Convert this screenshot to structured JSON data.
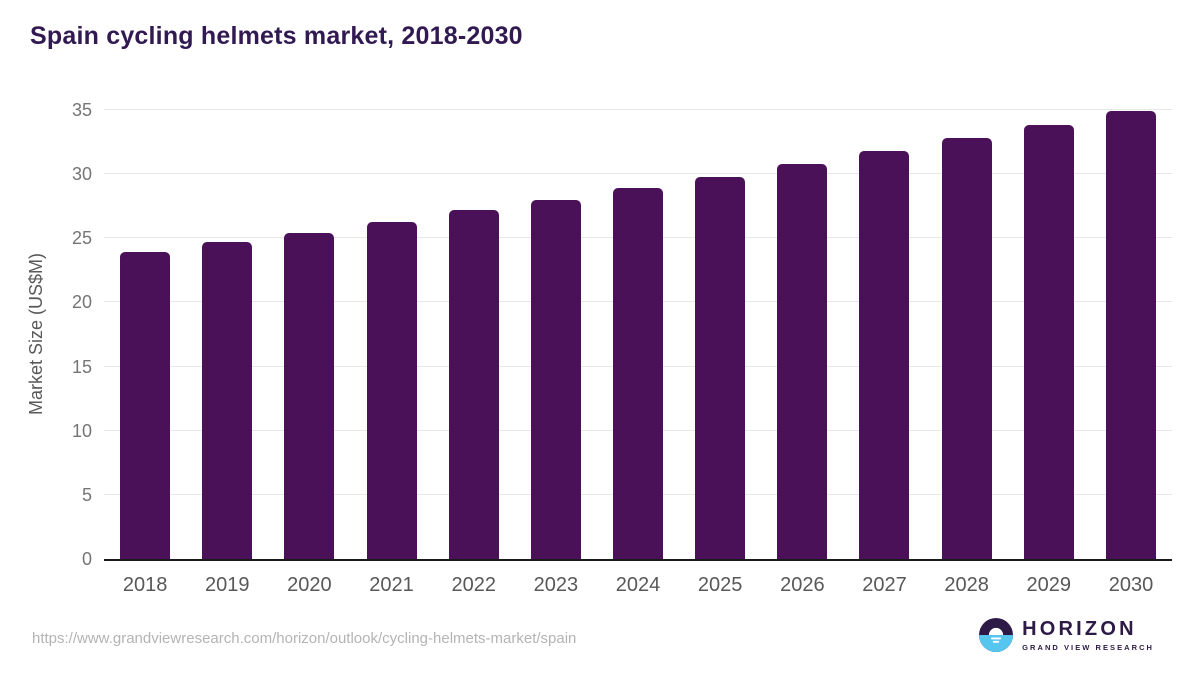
{
  "title": "Spain cycling helmets market, 2018-2030",
  "chart_data": {
    "type": "bar",
    "title": "Spain cycling helmets market, 2018-2030",
    "categories": [
      "2018",
      "2019",
      "2020",
      "2021",
      "2022",
      "2023",
      "2024",
      "2025",
      "2026",
      "2027",
      "2028",
      "2029",
      "2030"
    ],
    "values": [
      23.9,
      24.7,
      25.4,
      26.3,
      27.2,
      28.0,
      28.9,
      29.8,
      30.8,
      31.8,
      32.8,
      33.8,
      34.9
    ],
    "xlabel": "",
    "ylabel": "Market Size (US$M)",
    "ylim": [
      0,
      35
    ],
    "ytick_step": 5,
    "grid": "horizontal",
    "legend": "none",
    "bar_color": "#4a1158"
  },
  "colors": {
    "bar": "#4a1158",
    "title_text": "#311951",
    "axis_tick_text": "#757575",
    "x_tick_text": "#58585a",
    "gridline": "#e8e8e8",
    "axis_line": "#1b1b1b",
    "logo_purple": "#2e1a47",
    "logo_blue": "#56c6ef",
    "url_text": "#b4b4b4"
  },
  "footer": {
    "source_url": "https://www.grandviewresearch.com/horizon/outlook/cycling-helmets-market/spain",
    "logo": {
      "brand": "HORIZON",
      "subbrand": "GRAND VIEW RESEARCH"
    }
  }
}
